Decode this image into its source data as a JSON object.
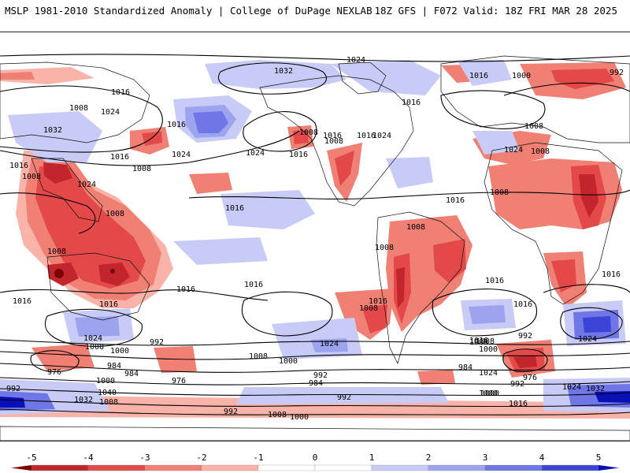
{
  "header": {
    "left": "MSLP 1981-2010 Standardized Anomaly | College of DuPage NEXLAB",
    "right": "18Z GFS | F072 Valid: 18Z FRI MAR 28 2025"
  },
  "colors": {
    "neg5": "#7a0000",
    "neg4": "#c0262b",
    "neg3": "#e4494a",
    "neg2": "#f07f74",
    "neg1": "#f9b3a8",
    "pos1": "#c8cbf6",
    "pos2": "#9ea3ef",
    "pos3": "#6f76e6",
    "pos4": "#3c44d8",
    "pos5": "#0a10b8"
  },
  "colorbar": {
    "ticks": [
      "-5",
      "-4",
      "-3",
      "-2",
      "-1",
      "0",
      "1",
      "2",
      "3",
      "4",
      "5"
    ]
  },
  "isobar_labels": [
    {
      "text": "1024"
    },
    {
      "text": "1032"
    },
    {
      "text": "1016"
    },
    {
      "text": "1000"
    },
    {
      "text": "992"
    },
    {
      "text": "1016"
    },
    {
      "text": "1008"
    },
    {
      "text": "1024"
    },
    {
      "text": "1016"
    },
    {
      "text": "1032"
    },
    {
      "text": "1016"
    },
    {
      "text": "1008"
    },
    {
      "text": "1016"
    },
    {
      "text": "1016"
    },
    {
      "text": "1024"
    },
    {
      "text": "1016"
    },
    {
      "text": "1008"
    },
    {
      "text": "1024"
    },
    {
      "text": "1008"
    },
    {
      "text": "1024"
    },
    {
      "text": "1008"
    },
    {
      "text": "1016"
    },
    {
      "text": "1024"
    },
    {
      "text": "1008"
    },
    {
      "text": "1016"
    },
    {
      "text": "1024"
    },
    {
      "text": "1016"
    },
    {
      "text": "1008"
    },
    {
      "text": "1016"
    },
    {
      "text": "1008"
    },
    {
      "text": "1008"
    },
    {
      "text": "1008"
    },
    {
      "text": "1008"
    },
    {
      "text": "1008"
    },
    {
      "text": "1016"
    },
    {
      "text": "1016"
    },
    {
      "text": "1016"
    },
    {
      "text": "1016"
    },
    {
      "text": "1016"
    },
    {
      "text": "1016"
    },
    {
      "text": "1008"
    },
    {
      "text": "1016"
    },
    {
      "text": "1016"
    },
    {
      "text": "1024"
    },
    {
      "text": "1008"
    },
    {
      "text": "1000"
    },
    {
      "text": "992"
    },
    {
      "text": "984"
    },
    {
      "text": "976"
    },
    {
      "text": "984"
    },
    {
      "text": "976"
    },
    {
      "text": "1000"
    },
    {
      "text": "1040"
    },
    {
      "text": "1032"
    },
    {
      "text": "1008"
    },
    {
      "text": "992"
    },
    {
      "text": "1024"
    },
    {
      "text": "1008"
    },
    {
      "text": "1000"
    },
    {
      "text": "992"
    },
    {
      "text": "984"
    },
    {
      "text": "1016"
    },
    {
      "text": "992"
    },
    {
      "text": "1000"
    },
    {
      "text": "1008"
    },
    {
      "text": "1000"
    },
    {
      "text": "984"
    },
    {
      "text": "992"
    },
    {
      "text": "1024"
    },
    {
      "text": "1008"
    },
    {
      "text": "1000"
    },
    {
      "text": "992"
    },
    {
      "text": "976"
    },
    {
      "text": "1016"
    },
    {
      "text": "1024"
    },
    {
      "text": "1032"
    },
    {
      "text": "992"
    },
    {
      "text": "1000"
    },
    {
      "text": "1024"
    },
    {
      "text": "1008"
    }
  ]
}
